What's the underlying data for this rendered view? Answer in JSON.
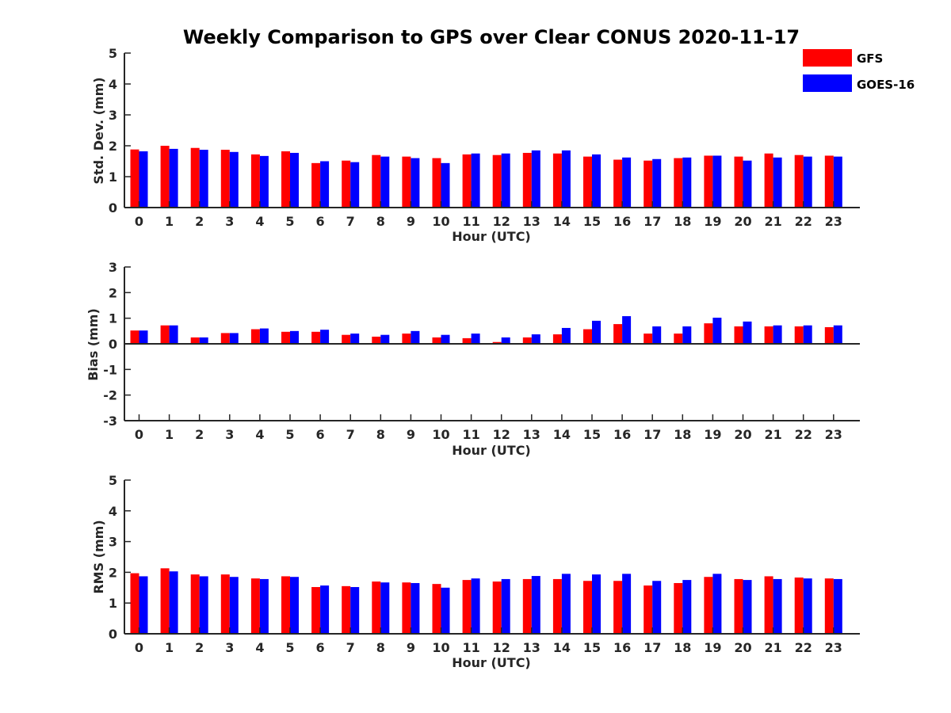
{
  "figure_title": "Weekly Comparison to GPS over Clear CONUS 2020-11-17",
  "legend": [
    {
      "label": "GFS",
      "color": "#ff0000"
    },
    {
      "label": "GOES-16",
      "color": "#0000ff"
    }
  ],
  "chart_data": [
    {
      "type": "bar",
      "title": "Weekly Comparison to GPS over Clear CONUS 2020-11-17",
      "xlabel": "Hour (UTC)",
      "ylabel": "Std. Dev. (mm)",
      "ylim": [
        0,
        5
      ],
      "yticks": [
        "0",
        "1",
        "2",
        "3",
        "4",
        "5"
      ],
      "categories": [
        "0",
        "1",
        "2",
        "3",
        "4",
        "5",
        "6",
        "7",
        "8",
        "9",
        "10",
        "11",
        "12",
        "13",
        "14",
        "15",
        "16",
        "17",
        "18",
        "19",
        "20",
        "21",
        "22",
        "23"
      ],
      "series": [
        {
          "name": "GFS",
          "color": "#ff0000",
          "values": [
            1.88,
            2.0,
            1.93,
            1.87,
            1.72,
            1.82,
            1.44,
            1.52,
            1.7,
            1.65,
            1.6,
            1.72,
            1.7,
            1.77,
            1.75,
            1.65,
            1.55,
            1.52,
            1.6,
            1.68,
            1.65,
            1.75,
            1.7,
            1.68
          ]
        },
        {
          "name": "GOES-16",
          "color": "#0000ff",
          "values": [
            1.82,
            1.9,
            1.87,
            1.8,
            1.67,
            1.77,
            1.5,
            1.47,
            1.65,
            1.6,
            1.44,
            1.75,
            1.75,
            1.85,
            1.85,
            1.72,
            1.62,
            1.57,
            1.62,
            1.68,
            1.52,
            1.62,
            1.65,
            1.65
          ]
        }
      ]
    },
    {
      "type": "bar",
      "xlabel": "Hour (UTC)",
      "ylabel": "Bias (mm)",
      "ylim": [
        -3,
        3
      ],
      "yticks": [
        "-3",
        "-2",
        "-1",
        "0",
        "1",
        "2",
        "3"
      ],
      "categories": [
        "0",
        "1",
        "2",
        "3",
        "4",
        "5",
        "6",
        "7",
        "8",
        "9",
        "10",
        "11",
        "12",
        "13",
        "14",
        "15",
        "16",
        "17",
        "18",
        "19",
        "20",
        "21",
        "22",
        "23"
      ],
      "series": [
        {
          "name": "GFS",
          "color": "#ff0000",
          "values": [
            0.52,
            0.72,
            0.25,
            0.42,
            0.57,
            0.47,
            0.47,
            0.35,
            0.28,
            0.4,
            0.25,
            0.22,
            0.07,
            0.25,
            0.37,
            0.57,
            0.77,
            0.4,
            0.4,
            0.8,
            0.68,
            0.68,
            0.68,
            0.65
          ]
        },
        {
          "name": "GOES-16",
          "color": "#0000ff",
          "values": [
            0.52,
            0.72,
            0.25,
            0.42,
            0.6,
            0.5,
            0.55,
            0.4,
            0.35,
            0.5,
            0.35,
            0.4,
            0.25,
            0.37,
            0.62,
            0.9,
            1.08,
            0.68,
            0.68,
            1.02,
            0.87,
            0.72,
            0.72,
            0.72
          ]
        }
      ]
    },
    {
      "type": "bar",
      "xlabel": "Hour (UTC)",
      "ylabel": "RMS (mm)",
      "ylim": [
        0,
        5
      ],
      "yticks": [
        "0",
        "1",
        "2",
        "3",
        "4",
        "5"
      ],
      "categories": [
        "0",
        "1",
        "2",
        "3",
        "4",
        "5",
        "6",
        "7",
        "8",
        "9",
        "10",
        "11",
        "12",
        "13",
        "14",
        "15",
        "16",
        "17",
        "18",
        "19",
        "20",
        "21",
        "22",
        "23"
      ],
      "series": [
        {
          "name": "GFS",
          "color": "#ff0000",
          "values": [
            1.97,
            2.13,
            1.93,
            1.93,
            1.8,
            1.87,
            1.52,
            1.55,
            1.7,
            1.67,
            1.62,
            1.75,
            1.7,
            1.78,
            1.78,
            1.72,
            1.72,
            1.57,
            1.65,
            1.85,
            1.78,
            1.87,
            1.83,
            1.8
          ]
        },
        {
          "name": "GOES-16",
          "color": "#0000ff",
          "values": [
            1.87,
            2.03,
            1.87,
            1.85,
            1.78,
            1.85,
            1.57,
            1.52,
            1.67,
            1.65,
            1.5,
            1.8,
            1.78,
            1.88,
            1.95,
            1.93,
            1.95,
            1.72,
            1.75,
            1.95,
            1.75,
            1.78,
            1.8,
            1.78
          ]
        }
      ]
    }
  ]
}
